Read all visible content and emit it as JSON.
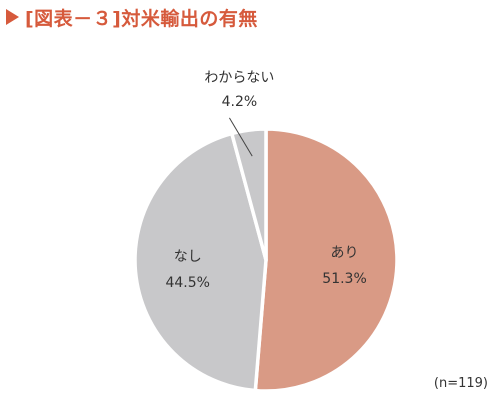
{
  "chart_data": {
    "type": "pie",
    "title": "[図表－３]対米輸出の有無",
    "note": "(n=119)",
    "slices": [
      {
        "label": "あり",
        "value": 51.3,
        "value_label": "51.3%",
        "color": "#d99a85"
      },
      {
        "label": "なし",
        "value": 44.5,
        "value_label": "44.5%",
        "color": "#c8c8ca"
      },
      {
        "label": "わからない",
        "value": 4.2,
        "value_label": "4.2%",
        "color": "#c8c8ca"
      }
    ],
    "start": "12 o'clock",
    "direction": "clockwise",
    "label_placement": "inside for large slices, outside with leader line for small slice"
  },
  "colors": {
    "title": "#d65a3c",
    "slice_border": "#ffffff",
    "text": "#333333"
  }
}
